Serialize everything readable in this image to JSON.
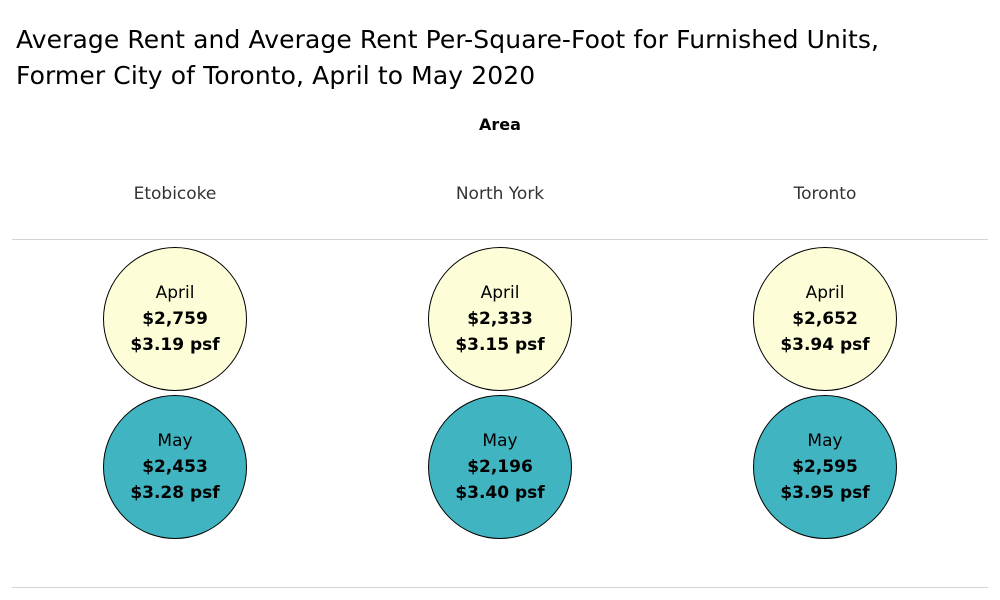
{
  "colors": {
    "april": "#fdfdd8",
    "may": "#40b4c0"
  },
  "chart_data": {
    "type": "table",
    "title": "Average Rent and Average Rent Per-Square-Foot for Furnished Units, Former City of Toronto, April to May 2020",
    "title_lines": [
      "Average Rent and Average Rent Per-Square-Foot for Furnished Units,",
      "Former City of Toronto, April to May 2020"
    ],
    "column_header_label": "Area",
    "areas": [
      "Etobicoke",
      "North York",
      "Toronto"
    ],
    "months": [
      "April",
      "May"
    ],
    "cells": [
      [
        {
          "month": "April",
          "rent": "$2,759",
          "psf": "$3.19 psf",
          "rent_value": 2759,
          "psf_value": 3.19
        },
        {
          "month": "April",
          "rent": "$2,333",
          "psf": "$3.15 psf",
          "rent_value": 2333,
          "psf_value": 3.15
        },
        {
          "month": "April",
          "rent": "$2,652",
          "psf": "$3.94 psf",
          "rent_value": 2652,
          "psf_value": 3.94
        }
      ],
      [
        {
          "month": "May",
          "rent": "$2,453",
          "psf": "$3.28 psf",
          "rent_value": 2453,
          "psf_value": 3.28
        },
        {
          "month": "May",
          "rent": "$2,196",
          "psf": "$3.40 psf",
          "rent_value": 2196,
          "psf_value": 3.4
        },
        {
          "month": "May",
          "rent": "$2,595",
          "psf": "$3.95 psf",
          "rent_value": 2595,
          "psf_value": 3.95
        }
      ]
    ]
  }
}
